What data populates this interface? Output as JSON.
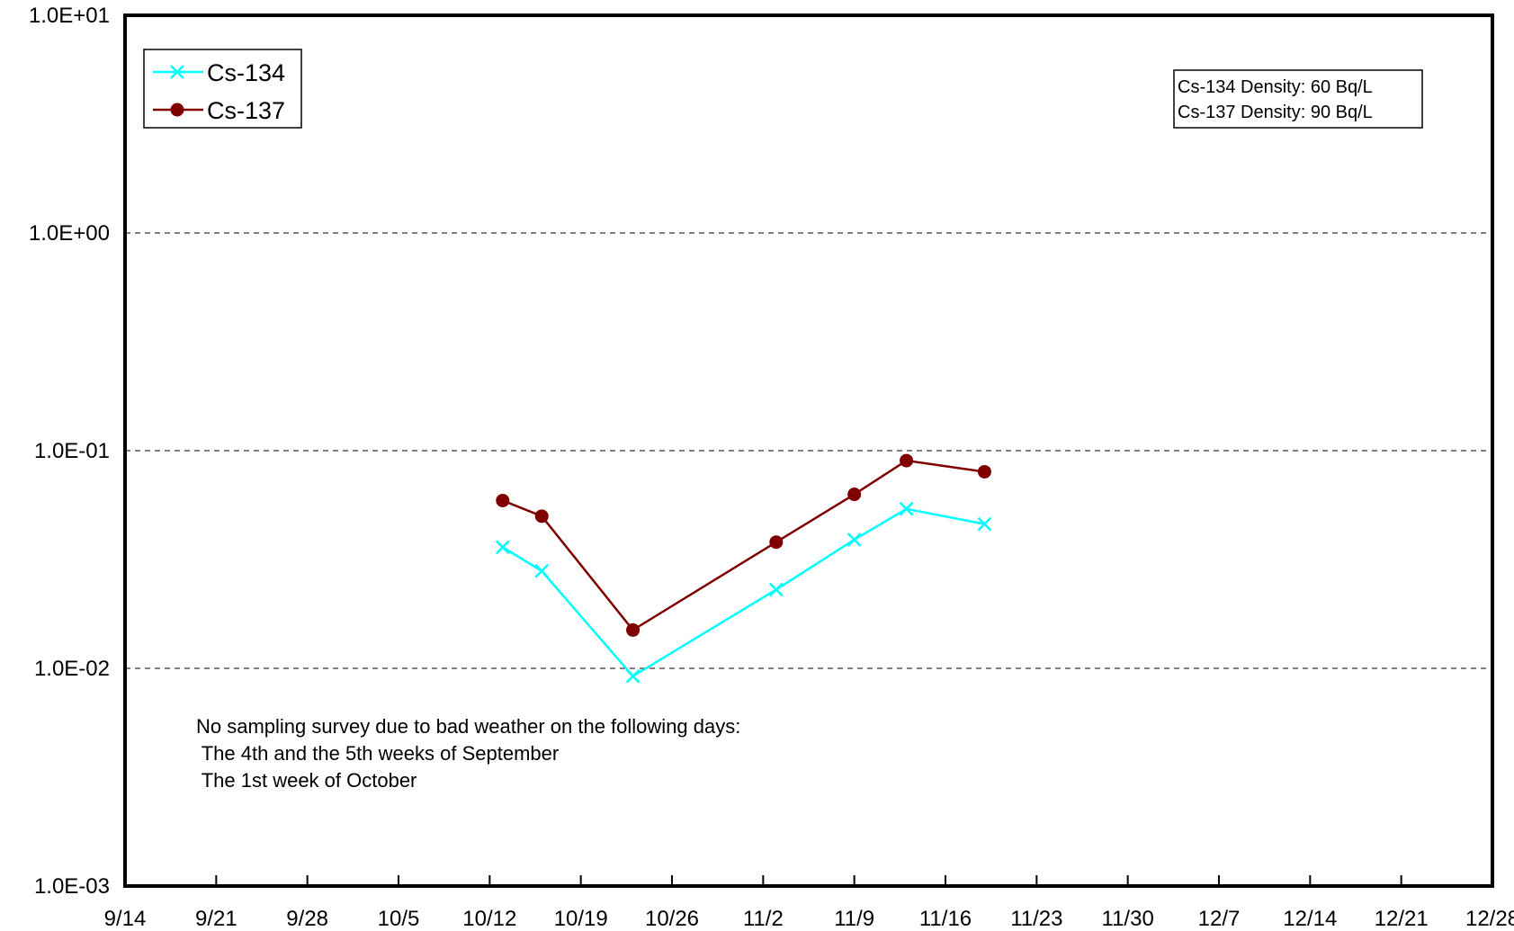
{
  "chart_data": {
    "type": "line",
    "title": "",
    "xlabel": "",
    "ylabel": "",
    "y_scale": "log",
    "ylim": [
      0.001,
      10
    ],
    "xlim": [
      "9/14",
      "12/28"
    ],
    "x_tick_labels": [
      "9/14",
      "9/21",
      "9/28",
      "10/5",
      "10/12",
      "10/19",
      "10/26",
      "11/2",
      "11/9",
      "11/16",
      "11/23",
      "11/30",
      "12/7",
      "12/14",
      "12/21",
      "12/28"
    ],
    "y_tick_labels": [
      "1.0E+01",
      "1.0E+00",
      "1.0E-01",
      "1.0E-02",
      "1.0E-03"
    ],
    "grid": "horizontal dashed",
    "legend_position": "top-left",
    "series": [
      {
        "name": "Cs-134",
        "color": "#00ffff",
        "marker": "x",
        "points": [
          {
            "x": "10/13",
            "y": 0.036
          },
          {
            "x": "10/16",
            "y": 0.028
          },
          {
            "x": "10/23",
            "y": 0.0092
          },
          {
            "x": "11/3",
            "y": 0.023
          },
          {
            "x": "11/9",
            "y": 0.039
          },
          {
            "x": "11/13",
            "y": 0.054
          },
          {
            "x": "11/19",
            "y": 0.046
          }
        ]
      },
      {
        "name": "Cs-137",
        "color": "#800000",
        "marker": "circle",
        "points": [
          {
            "x": "10/13",
            "y": 0.059
          },
          {
            "x": "10/16",
            "y": 0.05
          },
          {
            "x": "10/23",
            "y": 0.015
          },
          {
            "x": "11/3",
            "y": 0.038
          },
          {
            "x": "11/9",
            "y": 0.063
          },
          {
            "x": "11/13",
            "y": 0.09
          },
          {
            "x": "11/19",
            "y": 0.08
          }
        ]
      }
    ],
    "density_box": {
      "lines": [
        "Cs-134 Density: 60 Bq/L",
        "Cs-137 Density: 90 Bq/L"
      ],
      "position": "top-right"
    },
    "annotation": {
      "lines": [
        "No sampling survey due to bad weather on the following days:",
        " The 4th and the 5th weeks of September",
        " The 1st week of October"
      ]
    }
  }
}
